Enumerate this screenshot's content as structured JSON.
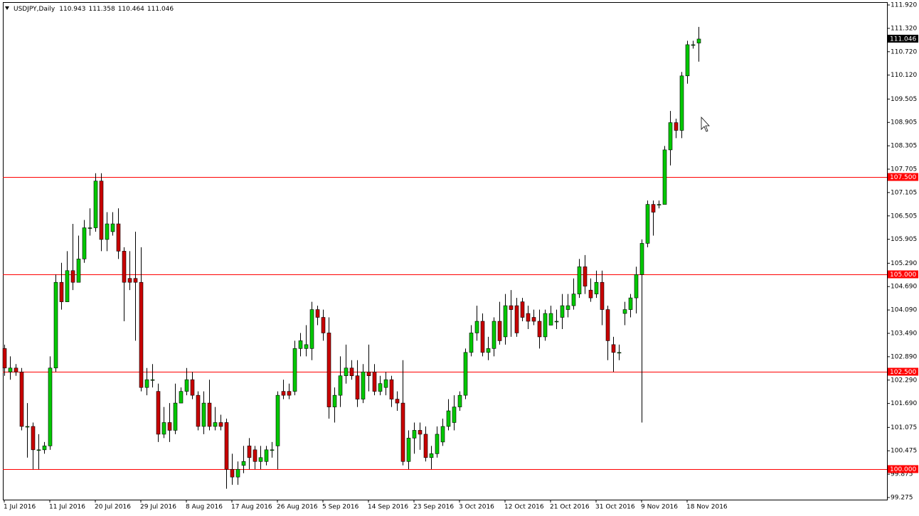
{
  "chart_data": {
    "type": "candlestick",
    "header": {
      "symbol": "USDJPY,Daily",
      "values": [
        110.943,
        111.358,
        110.464,
        111.046
      ]
    },
    "categories": [
      "1 Jul 2016",
      null,
      null,
      null,
      null,
      null,
      null,
      null,
      "11 Jul 2016",
      null,
      null,
      null,
      null,
      null,
      null,
      null,
      "20 Jul 2016",
      null,
      null,
      null,
      null,
      null,
      null,
      null,
      "29 Jul 2016",
      null,
      null,
      null,
      null,
      null,
      null,
      null,
      "8 Aug 2016",
      null,
      null,
      null,
      null,
      null,
      null,
      null,
      "17 Aug 2016",
      null,
      null,
      null,
      null,
      null,
      null,
      null,
      "26 Aug 2016",
      null,
      null,
      null,
      null,
      null,
      null,
      null,
      "5 Sep 2016",
      null,
      null,
      null,
      null,
      null,
      null,
      null,
      "14 Sep 2016",
      null,
      null,
      null,
      null,
      null,
      null,
      null,
      "23 Sep 2016",
      null,
      null,
      null,
      null,
      null,
      null,
      null,
      "3 Oct 2016",
      null,
      null,
      null,
      null,
      null,
      null,
      null,
      "12 Oct 2016",
      null,
      null,
      null,
      null,
      null,
      null,
      null,
      "21 Oct 2016",
      null,
      null,
      null,
      null,
      null,
      null,
      null,
      "31 Oct 2016",
      null,
      null,
      null,
      null,
      null,
      null,
      null,
      "9 Nov 2016",
      null,
      null,
      null,
      null,
      null,
      null,
      null,
      "18 Nov 2016",
      null,
      null
    ],
    "open": [
      103.1,
      102.5,
      102.6,
      102.5,
      101.1,
      101.1,
      100.5,
      100.5,
      100.6,
      102.6,
      104.8,
      104.3,
      105.1,
      104.8,
      105.4,
      106.2,
      106.2,
      107.4,
      105.9,
      106.1,
      106.3,
      105.6,
      104.9,
      104.9,
      104.8,
      102.1,
      102.3,
      102.0,
      100.9,
      101.2,
      101.0,
      101.7,
      102.0,
      102.3,
      101.9,
      101.1,
      101.7,
      101.1,
      101.2,
      101.2,
      100.0,
      99.8,
      100.1,
      100.6,
      100.5,
      100.2,
      100.2,
      100.5,
      100.6,
      102.0,
      102.0,
      102.0,
      103.1,
      103.1,
      103.1,
      104.1,
      103.9,
      103.5,
      101.6,
      101.9,
      102.4,
      102.6,
      102.4,
      101.8,
      102.5,
      102.5,
      102.0,
      102.1,
      102.3,
      101.8,
      101.7,
      100.2,
      100.8,
      101.0,
      100.9,
      100.3,
      100.4,
      100.7,
      101.1,
      101.2,
      101.6,
      101.9,
      103.0,
      103.5,
      103.8,
      103.0,
      103.1,
      103.8,
      103.4,
      104.2,
      104.2,
      104.3,
      104.0,
      103.9,
      103.8,
      103.4,
      103.7,
      103.8,
      103.9,
      104.1,
      104.2,
      104.5,
      105.2,
      104.6,
      104.5,
      104.8,
      104.1,
      103.2,
      103.0,
      104.0,
      104.1,
      104.4,
      105.0,
      105.8,
      106.8,
      106.8,
      106.8,
      108.2,
      108.9,
      108.7,
      110.1,
      110.9,
      110.943
    ],
    "high": [
      103.2,
      102.9,
      102.7,
      102.6,
      101.7,
      101.2,
      100.9,
      100.7,
      102.9,
      105.0,
      105.3,
      105.6,
      106.3,
      106.0,
      106.4,
      106.7,
      107.6,
      107.6,
      106.6,
      106.6,
      106.7,
      105.7,
      105.6,
      106.1,
      105.7,
      102.6,
      102.7,
      102.2,
      101.6,
      101.7,
      102.2,
      102.1,
      102.6,
      102.5,
      102.0,
      102.0,
      102.3,
      101.6,
      101.4,
      101.3,
      100.4,
      100.2,
      100.6,
      100.8,
      100.6,
      100.6,
      100.6,
      100.7,
      102.0,
      102.3,
      102.2,
      103.3,
      103.5,
      103.7,
      104.3,
      104.2,
      104.1,
      103.9,
      102.1,
      102.9,
      103.2,
      102.8,
      102.8,
      102.7,
      103.2,
      102.7,
      102.4,
      102.5,
      102.4,
      102.0,
      102.8,
      101.0,
      101.2,
      101.2,
      101.1,
      100.6,
      101.1,
      101.3,
      101.8,
      101.9,
      102.0,
      103.1,
      103.7,
      104.2,
      104.0,
      103.4,
      103.9,
      104.3,
      104.5,
      104.6,
      104.4,
      104.4,
      104.2,
      104.1,
      104.1,
      104.1,
      104.2,
      104.1,
      104.5,
      104.5,
      104.9,
      105.4,
      105.5,
      104.9,
      105.1,
      105.1,
      104.2,
      103.4,
      103.2,
      104.3,
      104.5,
      105.2,
      105.9,
      106.9,
      106.9,
      106.9,
      108.3,
      109.2,
      109.0,
      110.2,
      111.0,
      111.0,
      111.358
    ],
    "low": [
      102.4,
      102.3,
      102.4,
      101.0,
      100.3,
      100.0,
      100.0,
      100.4,
      100.5,
      102.5,
      104.1,
      104.3,
      104.6,
      104.9,
      105.3,
      106.0,
      106.1,
      105.6,
      105.6,
      106.0,
      105.4,
      103.8,
      104.6,
      103.3,
      102.0,
      101.9,
      102.1,
      100.7,
      100.8,
      100.7,
      100.9,
      101.8,
      101.9,
      101.8,
      101.0,
      100.9,
      101.0,
      101.0,
      101.0,
      99.5,
      99.6,
      99.6,
      99.9,
      100.0,
      100.0,
      100.0,
      100.1,
      100.3,
      100.0,
      101.8,
      101.8,
      101.9,
      102.9,
      102.9,
      102.8,
      103.7,
      103.3,
      101.3,
      101.2,
      101.6,
      102.2,
      102.3,
      101.6,
      101.7,
      102.0,
      101.9,
      101.9,
      101.9,
      101.6,
      101.5,
      100.1,
      100.0,
      100.4,
      100.5,
      100.2,
      100.0,
      100.3,
      100.6,
      101.0,
      101.0,
      101.5,
      101.8,
      102.9,
      103.3,
      102.9,
      102.8,
      102.9,
      103.2,
      103.2,
      103.4,
      103.4,
      103.8,
      103.6,
      103.7,
      103.1,
      103.3,
      103.7,
      103.6,
      103.6,
      103.9,
      104.1,
      104.4,
      104.5,
      104.3,
      104.4,
      103.7,
      102.8,
      102.5,
      102.8,
      103.7,
      103.9,
      104.0,
      101.2,
      105.7,
      106.0,
      106.7,
      106.8,
      107.8,
      108.5,
      108.5,
      109.9,
      110.8,
      110.464
    ],
    "close": [
      102.6,
      102.6,
      102.5,
      101.1,
      101.1,
      100.5,
      100.5,
      100.6,
      102.6,
      104.8,
      104.3,
      105.1,
      104.8,
      105.4,
      106.2,
      106.2,
      107.4,
      105.9,
      106.3,
      106.3,
      105.6,
      104.8,
      104.8,
      104.8,
      102.1,
      102.3,
      102.3,
      100.9,
      101.2,
      101.0,
      101.7,
      102.0,
      102.3,
      101.9,
      101.1,
      101.7,
      101.1,
      101.2,
      101.1,
      100.0,
      99.8,
      100.0,
      100.2,
      100.3,
      100.2,
      100.3,
      100.5,
      100.5,
      101.9,
      101.9,
      101.9,
      103.1,
      103.3,
      103.2,
      104.1,
      103.9,
      103.5,
      101.6,
      101.9,
      102.4,
      102.6,
      102.4,
      101.8,
      102.5,
      102.4,
      102.0,
      102.2,
      102.3,
      101.8,
      101.7,
      100.2,
      100.8,
      101.0,
      100.9,
      100.3,
      100.4,
      100.9,
      101.1,
      101.5,
      101.6,
      101.9,
      103.0,
      103.5,
      103.8,
      103.0,
      103.1,
      103.8,
      103.3,
      104.2,
      104.1,
      103.5,
      103.9,
      103.8,
      103.8,
      103.4,
      104.0,
      104.0,
      103.8,
      104.2,
      104.2,
      104.5,
      105.2,
      104.7,
      104.4,
      104.8,
      104.1,
      103.3,
      103.0,
      103.0,
      104.1,
      104.4,
      105.0,
      105.8,
      106.8,
      106.6,
      106.8,
      108.2,
      108.9,
      108.7,
      110.1,
      110.9,
      110.9,
      111.046
    ],
    "up_color": "#00c800",
    "down_color": "#c80000",
    "ylim": [
      99.22,
      111.975
    ],
    "yticks": [
      {
        "value": 111.92,
        "label": "111.920"
      },
      {
        "value": 111.32,
        "label": "111.320"
      },
      {
        "value": 110.72,
        "label": "110.720"
      },
      {
        "value": 110.12,
        "label": "110.120"
      },
      109.505,
      108.905,
      108.305,
      107.705,
      107.105,
      106.505,
      105.905,
      {
        "value": 105.29,
        "label": "105.290"
      },
      {
        "value": 104.69,
        "label": "104.690"
      },
      {
        "value": 104.09,
        "label": "104.090"
      },
      {
        "value": 103.49,
        "label": "103.490"
      },
      {
        "value": 102.89,
        "label": "102.890"
      },
      {
        "value": 102.29,
        "label": "102.290"
      },
      {
        "value": 101.69,
        "label": "101.690"
      },
      101.075,
      100.475,
      99.875,
      99.275
    ],
    "levels": [
      {
        "value": 107.5,
        "label": "107.500"
      },
      {
        "value": 105,
        "label": "105.000"
      },
      {
        "value": 102.5,
        "label": "102.500"
      },
      {
        "value": 100,
        "label": "100.000"
      }
    ],
    "level_color": "#ff0000",
    "last_price": 111.046
  }
}
